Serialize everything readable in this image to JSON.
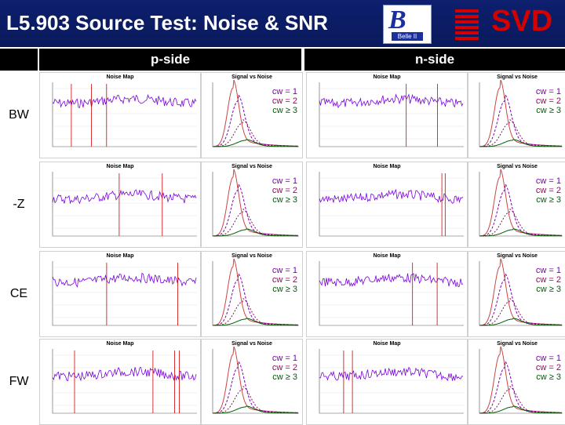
{
  "header": {
    "title": "L5.903 Source Test: Noise & SNR",
    "logo_text": "Belle II",
    "brand": "SVD"
  },
  "columns": {
    "p_side": "p-side",
    "n_side": "n-side"
  },
  "plots": {
    "noise_title": "Noise Map",
    "snr_title": "Signal vs Noise"
  },
  "rows": [
    {
      "label": "BW",
      "cw": [
        "cw = 1",
        "cw = 2",
        "cw ≥ 3"
      ]
    },
    {
      "label": "-Z",
      "cw": [
        "cw = 1",
        "cw = 2",
        "cw ≥ 3"
      ]
    },
    {
      "label": "CE",
      "cw": [
        "cw = 1",
        "cw = 2",
        "cw ≥ 3"
      ]
    },
    {
      "label": "FW",
      "cw": [
        "cw = 1",
        "cw = 2",
        "cw ≥ 3"
      ]
    }
  ],
  "colors": {
    "header_bg": "#0d1f6e",
    "noise_line": "#7a00e0",
    "dead_strip": "#d00000",
    "cw1": "#7a00b0",
    "cw2": "#a00060",
    "cw3": "#006000"
  }
}
